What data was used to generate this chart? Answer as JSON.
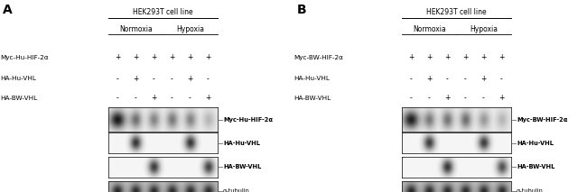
{
  "fig_width": 6.5,
  "fig_height": 2.13,
  "dpi": 100,
  "background": "#ffffff",
  "panels": [
    {
      "label": "A",
      "title": "HEK293T cell line",
      "conditions_header": [
        "Normoxia",
        "Hypoxia"
      ],
      "row_labels": [
        "Myc-Hu-HIF-2α",
        "HA-Hu-VHL",
        "HA-BW-VHL"
      ],
      "col_signs": [
        [
          "+",
          "+",
          "+",
          "+",
          "+",
          "+"
        ],
        [
          "-",
          "+",
          "-",
          "-",
          "+",
          "-"
        ],
        [
          "-",
          "-",
          "+",
          "-",
          "-",
          "+"
        ]
      ],
      "blot_labels": [
        "Myc-Hu-HIF-2α",
        "HA-Hu-VHL",
        "HA-BW-VHL",
        "α-tubulin"
      ],
      "blot_labels_bold": [
        true,
        true,
        true,
        false
      ],
      "blot_rows": [
        {
          "bands": [
            0.95,
            0.55,
            0.45,
            0.5,
            0.45,
            0.22
          ],
          "bg": 0.1
        },
        {
          "bands": [
            0.0,
            0.88,
            0.0,
            0.0,
            0.88,
            0.0
          ],
          "bg": 0.04
        },
        {
          "bands": [
            0.0,
            0.0,
            0.85,
            0.0,
            0.0,
            0.82
          ],
          "bg": 0.04
        },
        {
          "bands": [
            0.68,
            0.65,
            0.65,
            0.65,
            0.65,
            0.65
          ],
          "bg": 0.28
        }
      ]
    },
    {
      "label": "B",
      "title": "HEK293T cell line",
      "conditions_header": [
        "Normoxia",
        "Hypoxia"
      ],
      "row_labels": [
        "Myc-BW-HIF-2α",
        "HA-Hu-VHL",
        "HA-BW-VHL"
      ],
      "col_signs": [
        [
          "+",
          "+",
          "+",
          "+",
          "+",
          "+"
        ],
        [
          "-",
          "+",
          "-",
          "-",
          "+",
          "-"
        ],
        [
          "-",
          "-",
          "+",
          "-",
          "-",
          "+"
        ]
      ],
      "blot_labels": [
        "Myc-BW-HIF-2α",
        "HA-Hu-VHL",
        "HA-BW-VHL",
        "α-tubulin"
      ],
      "blot_labels_bold": [
        true,
        true,
        true,
        false
      ],
      "blot_rows": [
        {
          "bands": [
            0.92,
            0.5,
            0.52,
            0.55,
            0.35,
            0.22
          ],
          "bg": 0.1
        },
        {
          "bands": [
            0.0,
            0.85,
            0.0,
            0.0,
            0.85,
            0.0
          ],
          "bg": 0.04
        },
        {
          "bands": [
            0.0,
            0.0,
            0.88,
            0.0,
            0.0,
            0.75
          ],
          "bg": 0.04
        },
        {
          "bands": [
            0.68,
            0.65,
            0.65,
            0.65,
            0.65,
            0.65
          ],
          "bg": 0.28
        }
      ]
    }
  ]
}
